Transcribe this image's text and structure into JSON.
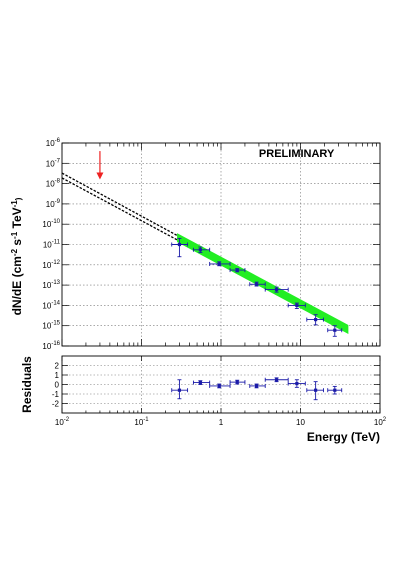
{
  "chart_data": [
    {
      "type": "scatter",
      "panel": "spectrum",
      "annotation": "PRELIMINARY",
      "ylabel": "dN/dE (cm^-2 s^-1 TeV^-1)",
      "ylabel_parts": {
        "main": "dN/dE (cm",
        "e1": "-2",
        "mid1": " s",
        "e2": "-1",
        "mid2": " TeV",
        "e3": "-1",
        "end": ")"
      },
      "xlabel": "",
      "xscale": "log",
      "yscale": "log",
      "xlim": [
        0.01,
        100
      ],
      "ylim": [
        1e-16,
        1e-06
      ],
      "grid": true,
      "y_ticks": [
        {
          "value": 1e-16,
          "label": "10",
          "exp": "-16"
        },
        {
          "value": 1e-15,
          "label": "10",
          "exp": "-15"
        },
        {
          "value": 1e-14,
          "label": "10",
          "exp": "-14"
        },
        {
          "value": 1e-13,
          "label": "10",
          "exp": "-13"
        },
        {
          "value": 1e-12,
          "label": "10",
          "exp": "-12"
        },
        {
          "value": 1e-11,
          "label": "10",
          "exp": "-11"
        },
        {
          "value": 1e-10,
          "label": "10",
          "exp": "-10"
        },
        {
          "value": 1e-09,
          "label": "10",
          "exp": "-9"
        },
        {
          "value": 1e-08,
          "label": "10",
          "exp": "-8"
        },
        {
          "value": 1e-07,
          "label": "10",
          "exp": "-7"
        },
        {
          "value": 1e-06,
          "label": "10",
          "exp": "-6"
        }
      ],
      "fit_band": {
        "color": "#22ee22",
        "x_range": [
          0.28,
          40
        ],
        "y_range": [
          2.2e-11,
          6.5e-16
        ],
        "half_width_decades": 0.22
      },
      "extrapolation_lines": [
        {
          "style": "dashed",
          "color": "#000000",
          "x": [
            0.01,
            0.28
          ],
          "y": [
            3.3e-08,
            2.8e-11
          ]
        },
        {
          "style": "dashed",
          "color": "#000000",
          "x": [
            0.01,
            0.28
          ],
          "y": [
            1.9e-08,
            1.7e-11
          ]
        }
      ],
      "upper_limit_arrow": {
        "color": "#ee2222",
        "x": 0.03,
        "y_from": 4e-07,
        "y_to": 1.6e-08
      },
      "series": [
        {
          "color": "#1a1aa8",
          "points": [
            {
              "x": 0.3,
              "y": 1e-11,
              "xlo": 0.24,
              "xhi": 0.38,
              "ylo": 2.5e-12,
              "yhi": 2e-11
            },
            {
              "x": 0.55,
              "y": 5.5e-12,
              "xlo": 0.45,
              "xhi": 0.72,
              "ylo": 4e-12,
              "yhi": 7.5e-12
            },
            {
              "x": 0.95,
              "y": 1.1e-12,
              "xlo": 0.72,
              "xhi": 1.3,
              "ylo": 9e-13,
              "yhi": 1.4e-12
            },
            {
              "x": 1.6,
              "y": 5.5e-13,
              "xlo": 1.3,
              "xhi": 2.0,
              "ylo": 4.5e-13,
              "yhi": 6.5e-13
            },
            {
              "x": 2.8,
              "y": 1.1e-13,
              "xlo": 2.3,
              "xhi": 3.6,
              "ylo": 9e-14,
              "yhi": 1.4e-13
            },
            {
              "x": 5.0,
              "y": 6e-14,
              "xlo": 3.6,
              "xhi": 7.0,
              "ylo": 4.5e-14,
              "yhi": 8e-14
            },
            {
              "x": 9.0,
              "y": 1e-14,
              "xlo": 7.0,
              "xhi": 11.5,
              "ylo": 7e-15,
              "yhi": 1.3e-14
            },
            {
              "x": 15.5,
              "y": 2e-15,
              "xlo": 12.0,
              "xhi": 19.5,
              "ylo": 1.1e-15,
              "yhi": 3.5e-15
            },
            {
              "x": 27,
              "y": 6e-16,
              "xlo": 22,
              "xhi": 33,
              "ylo": 3e-16,
              "yhi": 1e-15
            }
          ]
        }
      ]
    },
    {
      "type": "scatter",
      "panel": "residuals",
      "ylabel": "Residuals",
      "xlabel": "Energy (TeV)",
      "xscale": "log",
      "xlim": [
        0.01,
        100
      ],
      "ylim": [
        -3,
        3
      ],
      "grid": true,
      "y_ticks": [
        {
          "value": -2,
          "label": "-2"
        },
        {
          "value": -1,
          "label": "-1"
        },
        {
          "value": 0,
          "label": "0"
        },
        {
          "value": 1,
          "label": "1"
        },
        {
          "value": 2,
          "label": "2"
        }
      ],
      "x_ticks": [
        {
          "value": 0.01,
          "label": "10",
          "exp": "-2"
        },
        {
          "value": 0.1,
          "label": "10",
          "exp": "-1"
        },
        {
          "value": 1,
          "label": "1",
          "exp": ""
        },
        {
          "value": 10,
          "label": "10",
          "exp": ""
        },
        {
          "value": 100,
          "label": "10",
          "exp": "2"
        }
      ],
      "series": [
        {
          "color": "#1a1aa8",
          "points": [
            {
              "x": 0.3,
              "y": -0.6,
              "xlo": 0.24,
              "xhi": 0.38,
              "ylo": -1.5,
              "yhi": 0.5
            },
            {
              "x": 0.55,
              "y": 0.2,
              "xlo": 0.45,
              "xhi": 0.72,
              "ylo": 0.0,
              "yhi": 0.4
            },
            {
              "x": 0.95,
              "y": -0.15,
              "xlo": 0.72,
              "xhi": 1.3,
              "ylo": -0.35,
              "yhi": 0.05
            },
            {
              "x": 1.6,
              "y": 0.25,
              "xlo": 1.3,
              "xhi": 2.0,
              "ylo": 0.05,
              "yhi": 0.45
            },
            {
              "x": 2.8,
              "y": -0.15,
              "xlo": 2.3,
              "xhi": 3.6,
              "ylo": -0.35,
              "yhi": 0.05
            },
            {
              "x": 5.0,
              "y": 0.5,
              "xlo": 3.6,
              "xhi": 7.0,
              "ylo": 0.3,
              "yhi": 0.7
            },
            {
              "x": 9.0,
              "y": 0.1,
              "xlo": 7.0,
              "xhi": 11.5,
              "ylo": -0.3,
              "yhi": 0.5
            },
            {
              "x": 15.5,
              "y": -0.6,
              "xlo": 12.0,
              "xhi": 19.5,
              "ylo": -1.6,
              "yhi": 0.3
            },
            {
              "x": 27,
              "y": -0.6,
              "xlo": 22,
              "xhi": 33,
              "ylo": -1.0,
              "yhi": -0.2
            }
          ]
        }
      ]
    }
  ]
}
